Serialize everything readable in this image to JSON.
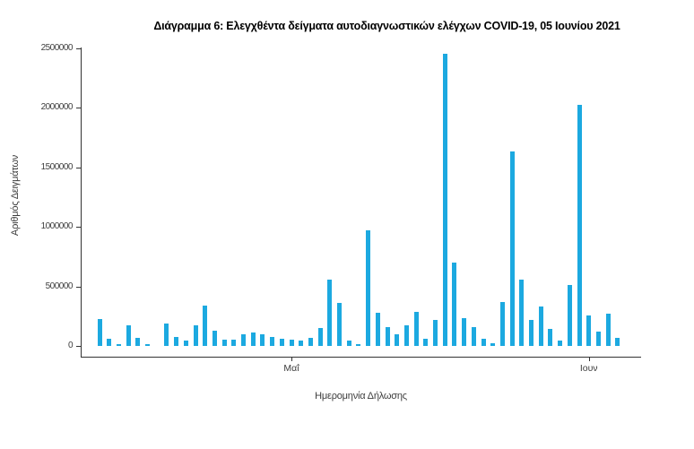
{
  "figure": {
    "title": "Διάγραμμα 6: Ελεγχθέντα δείγματα αυτοδιαγνωστικών ελέγχων COVID-19, 05 Ιουνίου 2021"
  },
  "chart_data": {
    "type": "bar",
    "title": "Διάγραμμα 6: Ελεγχθέντα δείγματα αυτοδιαγνωστικών ελέγχων COVID-19, 05 Ιουνίου 2021",
    "xlabel": "Ημερομηνία Δήλωσης",
    "ylabel": "Αριθμός Δειγμάτων",
    "ylim": [
      0,
      2500000
    ],
    "yticks": [
      0,
      500000,
      1000000,
      1500000,
      2000000,
      2500000
    ],
    "ytick_labels": [
      "0",
      "500000",
      "1000000",
      "1500000",
      "2000000",
      "2500000"
    ],
    "xticks": [
      {
        "label": "Μαΐ",
        "date": "2021-05-01"
      },
      {
        "label": "Ιουν",
        "date": "2021-06-01"
      }
    ],
    "grid": false,
    "legend": false,
    "bar_color": "#1ca9e0",
    "axis_color": "#333333",
    "points": [
      {
        "date": "2021-04-11",
        "value": 225000
      },
      {
        "date": "2021-04-12",
        "value": 60000
      },
      {
        "date": "2021-04-13",
        "value": 19000
      },
      {
        "date": "2021-04-14",
        "value": 170000
      },
      {
        "date": "2021-04-15",
        "value": 70000
      },
      {
        "date": "2021-04-16",
        "value": 15000
      },
      {
        "date": "2021-04-17",
        "value": 0
      },
      {
        "date": "2021-04-18",
        "value": 190000
      },
      {
        "date": "2021-04-19",
        "value": 75000
      },
      {
        "date": "2021-04-20",
        "value": 45000
      },
      {
        "date": "2021-04-21",
        "value": 170000
      },
      {
        "date": "2021-04-22",
        "value": 340000
      },
      {
        "date": "2021-04-23",
        "value": 125000
      },
      {
        "date": "2021-04-24",
        "value": 50000
      },
      {
        "date": "2021-04-25",
        "value": 55000
      },
      {
        "date": "2021-04-26",
        "value": 95000
      },
      {
        "date": "2021-04-27",
        "value": 115000
      },
      {
        "date": "2021-04-28",
        "value": 100000
      },
      {
        "date": "2021-04-29",
        "value": 75000
      },
      {
        "date": "2021-04-30",
        "value": 58000
      },
      {
        "date": "2021-05-01",
        "value": 50000
      },
      {
        "date": "2021-05-02",
        "value": 45000
      },
      {
        "date": "2021-05-03",
        "value": 70000
      },
      {
        "date": "2021-05-04",
        "value": 150000
      },
      {
        "date": "2021-05-05",
        "value": 560000
      },
      {
        "date": "2021-05-06",
        "value": 360000
      },
      {
        "date": "2021-05-07",
        "value": 45000
      },
      {
        "date": "2021-05-08",
        "value": 15000
      },
      {
        "date": "2021-05-09",
        "value": 970000
      },
      {
        "date": "2021-05-10",
        "value": 280000
      },
      {
        "date": "2021-05-11",
        "value": 160000
      },
      {
        "date": "2021-05-12",
        "value": 95000
      },
      {
        "date": "2021-05-13",
        "value": 170000
      },
      {
        "date": "2021-05-14",
        "value": 285000
      },
      {
        "date": "2021-05-15",
        "value": 58000
      },
      {
        "date": "2021-05-16",
        "value": 220000
      },
      {
        "date": "2021-05-17",
        "value": 2450000
      },
      {
        "date": "2021-05-18",
        "value": 697000
      },
      {
        "date": "2021-05-19",
        "value": 233000
      },
      {
        "date": "2021-05-20",
        "value": 158000
      },
      {
        "date": "2021-05-21",
        "value": 58000
      },
      {
        "date": "2021-05-22",
        "value": 25000
      },
      {
        "date": "2021-05-23",
        "value": 370000
      },
      {
        "date": "2021-05-24",
        "value": 1630000
      },
      {
        "date": "2021-05-25",
        "value": 560000
      },
      {
        "date": "2021-05-26",
        "value": 222000
      },
      {
        "date": "2021-05-27",
        "value": 333000
      },
      {
        "date": "2021-05-28",
        "value": 145000
      },
      {
        "date": "2021-05-29",
        "value": 45000
      },
      {
        "date": "2021-05-30",
        "value": 510000
      },
      {
        "date": "2021-05-31",
        "value": 2025000
      },
      {
        "date": "2021-06-01",
        "value": 258000
      },
      {
        "date": "2021-06-02",
        "value": 120000
      },
      {
        "date": "2021-06-03",
        "value": 271000
      },
      {
        "date": "2021-06-04",
        "value": 70000
      }
    ]
  }
}
